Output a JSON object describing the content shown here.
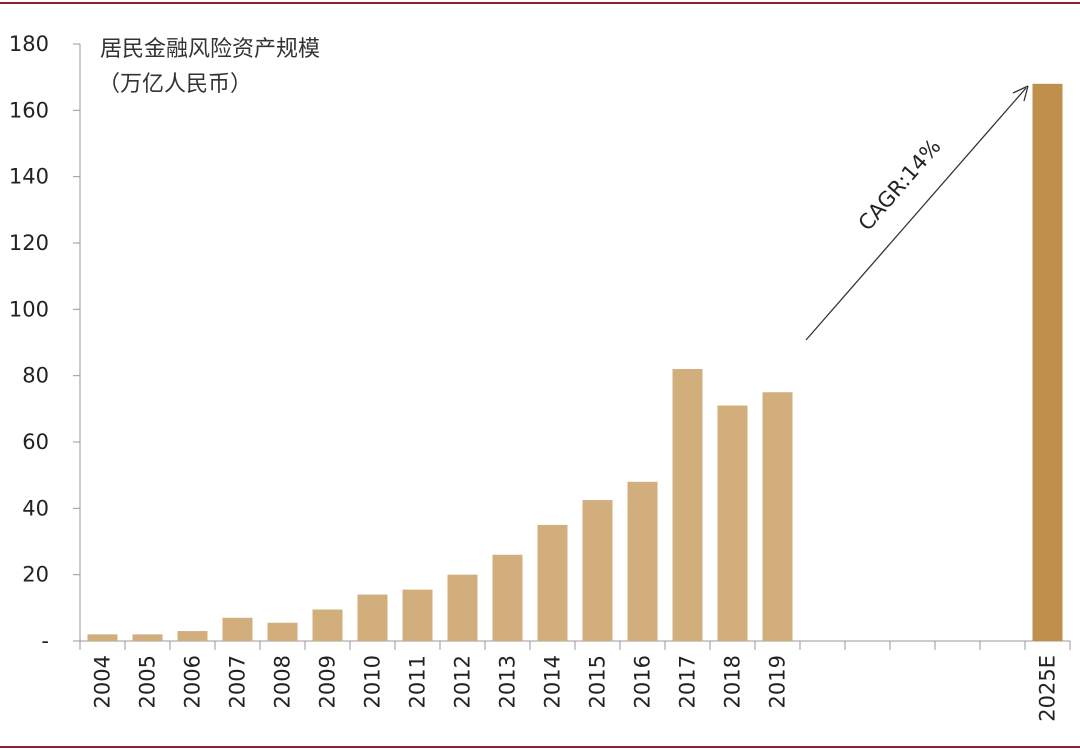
{
  "chart_data": {
    "type": "bar",
    "title_lines": [
      "居民金融风险资产规模",
      "（万亿人民币）"
    ],
    "categories": [
      "2004",
      "2005",
      "2006",
      "2007",
      "2008",
      "2009",
      "2010",
      "2011",
      "2012",
      "2013",
      "2014",
      "2015",
      "2016",
      "2017",
      "2018",
      "2019",
      "",
      "",
      "",
      "",
      "",
      "2025E"
    ],
    "values": [
      2,
      2,
      3,
      7,
      5.5,
      9.5,
      14,
      15.5,
      20,
      26,
      35,
      42.5,
      48,
      82,
      71,
      75,
      null,
      null,
      null,
      null,
      null,
      168
    ],
    "ylim": [
      0,
      180
    ],
    "yticks": [
      0,
      20,
      40,
      60,
      80,
      100,
      120,
      140,
      160,
      180
    ],
    "ytick_labels": [
      "-",
      "20",
      "40",
      "60",
      "80",
      "100",
      "120",
      "140",
      "160",
      "180"
    ],
    "colors": {
      "actual": "#d2ae7d",
      "estimate": "#c08f4c"
    },
    "annotation": {
      "text": "CAGR:14%"
    }
  }
}
